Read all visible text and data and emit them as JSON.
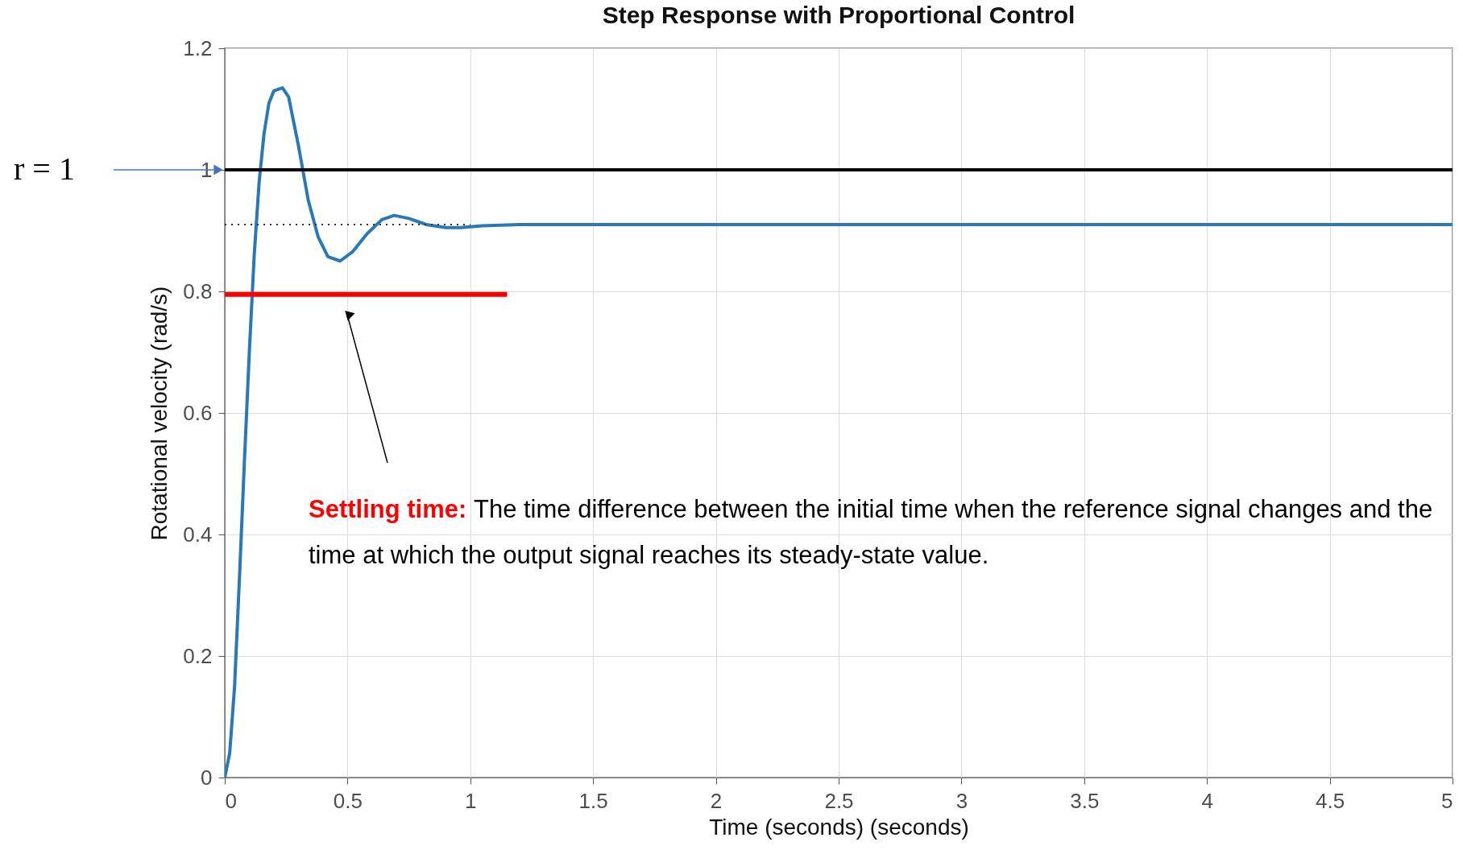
{
  "chart_data": {
    "type": "line",
    "title": "Step Response with Proportional Control",
    "xlabel": "Time (seconds) (seconds)",
    "ylabel": "Rotational velocity (rad/s)",
    "xlim": [
      0,
      5
    ],
    "xticks": [
      0,
      0.5,
      1,
      1.5,
      2,
      2.5,
      3,
      3.5,
      4,
      4.5,
      5
    ],
    "ylim": [
      0,
      1.2
    ],
    "yticks": [
      0,
      0.2,
      0.4,
      0.6,
      0.8,
      1,
      1.2
    ],
    "grid": true,
    "marker": "none",
    "series": [
      {
        "color": "#2a78b6",
        "x": [
          0,
          0.02,
          0.04,
          0.06,
          0.08,
          0.1,
          0.12,
          0.14,
          0.16,
          0.18,
          0.2,
          0.235,
          0.26,
          0.3,
          0.34,
          0.38,
          0.42,
          0.47,
          0.52,
          0.58,
          0.64,
          0.69,
          0.75,
          0.82,
          0.9,
          0.96,
          1.05,
          1.2,
          1.5,
          2,
          3,
          4,
          5
        ],
        "values": [
          0,
          0.04,
          0.15,
          0.33,
          0.52,
          0.7,
          0.86,
          0.98,
          1.06,
          1.11,
          1.13,
          1.135,
          1.12,
          1.04,
          0.95,
          0.89,
          0.857,
          0.85,
          0.865,
          0.895,
          0.918,
          0.925,
          0.92,
          0.91,
          0.905,
          0.905,
          0.908,
          0.91,
          0.91,
          0.91,
          0.91,
          0.91,
          0.91
        ]
      },
      {
        "color": "#333333",
        "line_style": "dotted",
        "x": [
          0,
          1
        ],
        "values": [
          0.91,
          0.91
        ]
      },
      {
        "color": "#ff0000",
        "x": [
          0,
          1.15
        ],
        "values": [
          0.795,
          0.795
        ]
      }
    ],
    "ref_lines": [
      {
        "axis": "y",
        "value": 1,
        "label": "r = 1",
        "color": "#000000"
      }
    ],
    "annotations": [
      "Settling time:",
      "The time difference between the initial time when the reference signal changes and the time at which the output signal reaches its steady-state value."
    ]
  }
}
